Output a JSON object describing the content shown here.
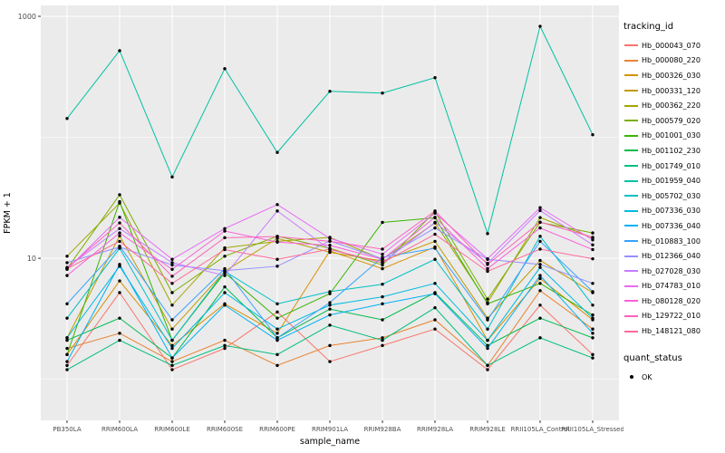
{
  "chart_data": {
    "type": "line",
    "title": "",
    "xlabel": "sample_name",
    "ylabel": "FPKM + 1",
    "y_scale": "log10",
    "y_ticks": [
      10,
      1000
    ],
    "y_tick_labels": [
      "10",
      "1000"
    ],
    "y_minor": [
      1,
      100
    ],
    "ylim_log10": [
      -0.34,
      3.09
    ],
    "grid": true,
    "panel_bg": "#EBEBEB",
    "grid_major_color": "#FFFFFF",
    "grid_minor_color": "#FFFFFF",
    "tick_label_color": "#4D4D4D",
    "point_color": "#000000",
    "legend_title": "tracking_id",
    "legend_position": "right",
    "categories": [
      "PB350LA",
      "RRIM600LA",
      "RRIM600LE",
      "RRIM600SE",
      "RRIM600PE",
      "RRIM901LA",
      "RRIM928BA",
      "RRIM928LA",
      "RRIM928LE",
      "RRII105LA_Control",
      "RRII105LA_Stressed"
    ],
    "series": [
      {
        "name": "Hb_000043_070",
        "color": "#F8766D",
        "values": [
          1.3,
          5.2,
          1.2,
          1.8,
          3.6,
          1.4,
          1.9,
          2.6,
          1.2,
          4.1,
          1.6
        ]
      },
      {
        "name": "Hb_000080_220",
        "color": "#EA8331",
        "values": [
          1.8,
          2.4,
          1.4,
          2.1,
          1.3,
          1.9,
          2.2,
          3.1,
          1.3,
          5.4,
          2.6
        ]
      },
      {
        "name": "Hb_000326_030",
        "color": "#D89000",
        "values": [
          1.6,
          6.5,
          1.9,
          4.2,
          2.4,
          11.5,
          8.2,
          12.4,
          2.1,
          6.8,
          3.1
        ]
      },
      {
        "name": "Hb_000331_120",
        "color": "#C09B00",
        "values": [
          2.2,
          15.3,
          2.6,
          7.8,
          14.6,
          11.2,
          9.5,
          13.8,
          3.2,
          9.6,
          5.2
        ]
      },
      {
        "name": "Hb_000362_220",
        "color": "#A3A500",
        "values": [
          10.4,
          28.6,
          4.1,
          12.2,
          13.8,
          14.9,
          9.8,
          19.6,
          4.3,
          21.7,
          14.8
        ]
      },
      {
        "name": "Hb_000579_020",
        "color": "#7CAE00",
        "values": [
          8.2,
          33.5,
          5.2,
          10.4,
          15.2,
          12.1,
          8.8,
          24.3,
          4.6,
          19.8,
          16.2
        ]
      },
      {
        "name": "Hb_001001_030",
        "color": "#39B600",
        "values": [
          1.6,
          29.4,
          2.1,
          7.6,
          3.2,
          5.1,
          19.8,
          21.6,
          4.2,
          6.2,
          3.4
        ]
      },
      {
        "name": "Hb_001102_230",
        "color": "#00BB4E",
        "values": [
          2.1,
          3.2,
          1.5,
          5.8,
          2.2,
          3.8,
          3.1,
          5.2,
          1.9,
          3.2,
          2.2
        ]
      },
      {
        "name": "Hb_001749_010",
        "color": "#00BF7D",
        "values": [
          1.2,
          2.1,
          1.3,
          1.9,
          1.6,
          2.8,
          2.1,
          3.9,
          1.3,
          2.2,
          1.5
        ]
      },
      {
        "name": "Hb_001959_040",
        "color": "#00C1A3",
        "values": [
          143,
          520,
          47,
          369,
          75,
          240,
          232,
          311,
          16,
          827,
          105
        ]
      },
      {
        "name": "Hb_005702_030",
        "color": "#00BFC4",
        "values": [
          3.2,
          12.1,
          2.1,
          7.8,
          4.2,
          5.3,
          6.1,
          9.8,
          2.6,
          15.2,
          4.1
        ]
      },
      {
        "name": "Hb_007336_030",
        "color": "#00BAE0",
        "values": [
          2.2,
          8.6,
          1.8,
          5.2,
          2.6,
          4.1,
          4.8,
          6.2,
          2.1,
          8.4,
          3.2
        ]
      },
      {
        "name": "Hb_007336_040",
        "color": "#00B0F6",
        "values": [
          1.4,
          8.9,
          1.5,
          4.1,
          2.1,
          3.4,
          4.2,
          5.1,
          1.8,
          7.2,
          2.4
        ]
      },
      {
        "name": "Hb_010883_100",
        "color": "#35A2FF",
        "values": [
          4.2,
          12.6,
          3.1,
          8.2,
          2.2,
          4.3,
          10.2,
          12.1,
          3.1,
          13.8,
          5.3
        ]
      },
      {
        "name": "Hb_012366_040",
        "color": "#9590FF",
        "values": [
          9.2,
          12.4,
          8.8,
          7.9,
          8.6,
          13.9,
          9.9,
          17.8,
          9.8,
          8.9,
          6.2
        ]
      },
      {
        "name": "Hb_027028_030",
        "color": "#C77CFF",
        "values": [
          8.4,
          17.6,
          9.2,
          7.2,
          24.6,
          11.8,
          9.2,
          19.8,
          9.1,
          24.8,
          12.9
        ]
      },
      {
        "name": "Hb_074783_010",
        "color": "#E76BF3",
        "values": [
          8.1,
          21.8,
          9.8,
          17.6,
          27.8,
          14.6,
          10.8,
          23.6,
          9.9,
          26.2,
          14.2
        ]
      },
      {
        "name": "Hb_080128_020",
        "color": "#FA62DB",
        "values": [
          7.2,
          16.2,
          8.1,
          16.8,
          13.6,
          12.8,
          9.8,
          21.8,
          8.2,
          17.8,
          11.8
        ]
      },
      {
        "name": "Hb_129722_010",
        "color": "#FF62BC",
        "values": [
          8.3,
          19.6,
          7.1,
          14.8,
          15.1,
          13.8,
          11.9,
          24.6,
          8.9,
          19.9,
          14.9
        ]
      },
      {
        "name": "Hb_148121_080",
        "color": "#FF6A98",
        "values": [
          8.2,
          13.8,
          6.2,
          11.8,
          9.8,
          11.9,
          9.2,
          15.8,
          7.8,
          11.9,
          9.9
        ]
      }
    ],
    "secondary_legend": {
      "title": "quant_status",
      "items": [
        {
          "label": "OK",
          "marker": "black-point"
        }
      ]
    }
  }
}
